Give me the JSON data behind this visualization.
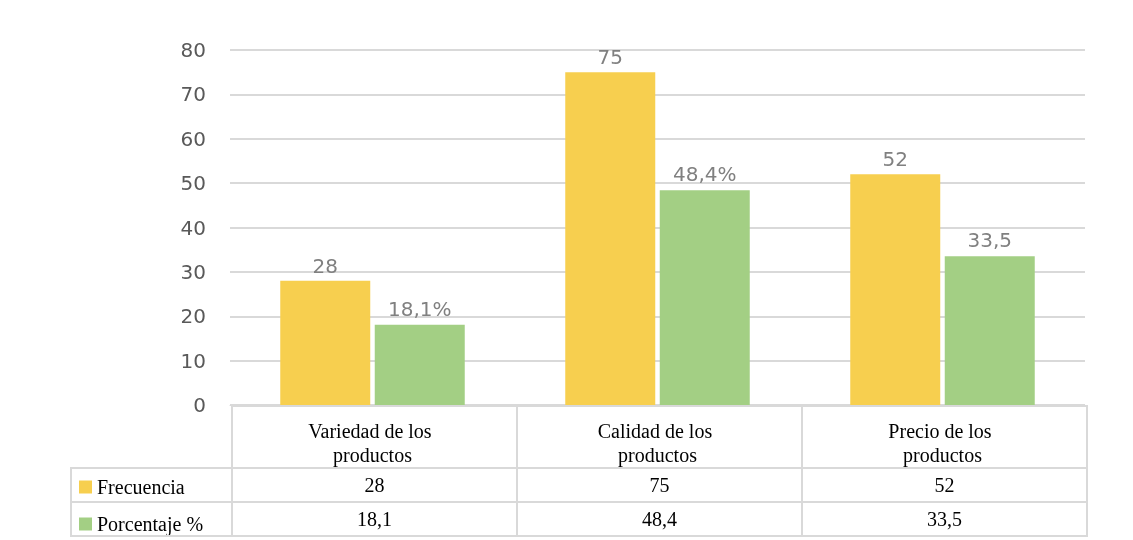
{
  "chart_data": {
    "type": "bar",
    "categories": [
      "Variedad de los productos",
      "Calidad de los productos",
      "Precio de los productos"
    ],
    "series": [
      {
        "name": "Frecuencia",
        "color": "#f7cf4f",
        "values": [
          28,
          75,
          52
        ],
        "value_labels": [
          "28",
          "75",
          "52"
        ]
      },
      {
        "name": "Porcentaje %",
        "color": "#a3cf84",
        "values": [
          18.1,
          48.4,
          33.5
        ],
        "value_labels": [
          "18,1",
          "48,4",
          "33,5"
        ]
      }
    ],
    "annotations": [
      {
        "text": "18,1%",
        "x": "Variedad de los productos",
        "y": 18.1
      },
      {
        "text": "48,4%",
        "x": "Calidad de los productos",
        "y": 48.4
      },
      {
        "text": "33,5",
        "x": "Precio de los productos",
        "y": 33.5
      }
    ],
    "ylim": [
      0,
      80
    ],
    "yticks": [
      0,
      10,
      20,
      30,
      40,
      50,
      60,
      70,
      80
    ],
    "grid": "y",
    "legend": "bottom left",
    "data_labels": true
  }
}
